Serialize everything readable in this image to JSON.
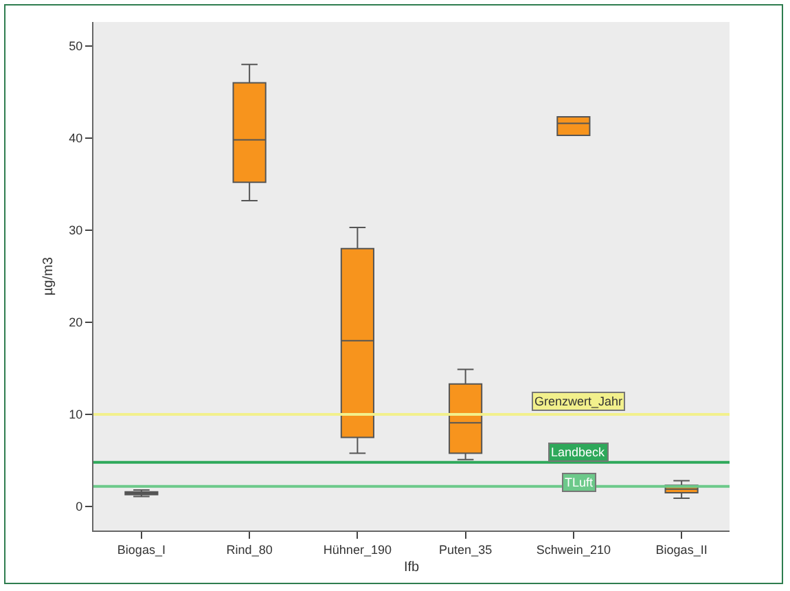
{
  "chart_data": {
    "type": "box",
    "xlabel": "Ifb",
    "ylabel": "µg/m3",
    "categories": [
      "Biogas_I",
      "Rind_80",
      "Hühner_190",
      "Puten_35",
      "Schwein_210",
      "Biogas_II"
    ],
    "boxes": [
      {
        "low": 1.1,
        "q1": 1.3,
        "median": 1.5,
        "q3": 1.6,
        "high": 1.8
      },
      {
        "low": 33.2,
        "q1": 35.2,
        "median": 39.8,
        "q3": 46,
        "high": 48
      },
      {
        "low": 5.8,
        "q1": 7.5,
        "median": 18,
        "q3": 28,
        "high": 30.3
      },
      {
        "low": 5.1,
        "q1": 5.8,
        "median": 9.1,
        "q3": 13.3,
        "high": 14.9
      },
      {
        "low": 40.3,
        "q1": 40.3,
        "median": 41.6,
        "q3": 42.3,
        "high": 42.3
      },
      {
        "low": 0.9,
        "q1": 1.5,
        "median": 1.9,
        "q3": 2.3,
        "high": 2.8
      }
    ],
    "color": "#f7941d",
    "ylim": [
      -2.6,
      52.6
    ],
    "yticks": [
      0,
      10,
      20,
      30,
      40,
      50
    ],
    "grid": false,
    "ref_lines": [
      {
        "axis": "y",
        "value": 10,
        "label": "Grenzwert_Jahr",
        "color": "#f2f08c"
      },
      {
        "axis": "y",
        "value": 4.8,
        "label": "Landbeck",
        "color": "#2ea85a"
      },
      {
        "axis": "y",
        "value": 2.2,
        "label": "TLuft",
        "color": "#6cc98a"
      }
    ]
  }
}
